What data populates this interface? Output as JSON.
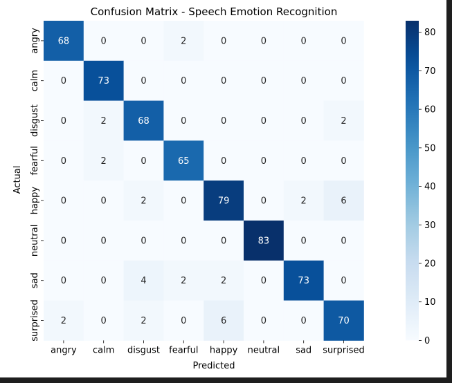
{
  "chart_data": {
    "type": "heatmap",
    "title": "Confusion Matrix - Speech Emotion Recognition",
    "xlabel": "Predicted",
    "ylabel": "Actual",
    "x_categories": [
      "angry",
      "calm",
      "disgust",
      "fearful",
      "happy",
      "neutral",
      "sad",
      "surprised"
    ],
    "y_categories": [
      "angry",
      "calm",
      "disgust",
      "fearful",
      "happy",
      "neutral",
      "sad",
      "surprised"
    ],
    "matrix": [
      [
        68,
        0,
        0,
        2,
        0,
        0,
        0,
        0
      ],
      [
        0,
        73,
        0,
        0,
        0,
        0,
        0,
        0
      ],
      [
        0,
        2,
        68,
        0,
        0,
        0,
        0,
        2
      ],
      [
        0,
        2,
        0,
        65,
        0,
        0,
        0,
        0
      ],
      [
        0,
        0,
        2,
        0,
        79,
        0,
        2,
        6
      ],
      [
        0,
        0,
        0,
        0,
        0,
        83,
        0,
        0
      ],
      [
        0,
        0,
        4,
        2,
        2,
        0,
        73,
        0
      ],
      [
        2,
        0,
        2,
        0,
        6,
        0,
        0,
        70
      ]
    ],
    "colormap": "Blues",
    "vmin": 0,
    "vmax": 83,
    "colorbar_ticks": [
      0,
      10,
      20,
      30,
      40,
      50,
      60,
      70,
      80
    ],
    "annotations": true
  }
}
